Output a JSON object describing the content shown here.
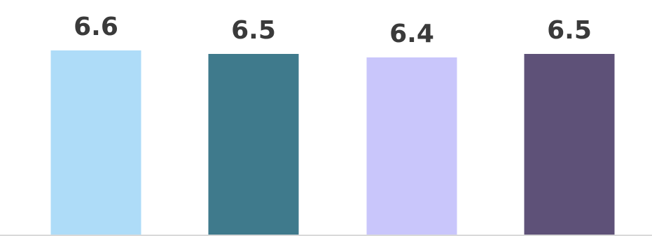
{
  "chart_data": {
    "type": "bar",
    "categories": [
      "",
      "",
      "",
      ""
    ],
    "values": [
      6.6,
      6.5,
      6.4,
      6.5
    ],
    "value_labels": [
      "6.6",
      "6.5",
      "6.4",
      "6.5"
    ],
    "colors": [
      "#aedcf8",
      "#3f7a8c",
      "#c9c6fb",
      "#5e5178"
    ],
    "title": "",
    "xlabel": "",
    "ylabel": "",
    "grid": false,
    "legend": "none"
  }
}
